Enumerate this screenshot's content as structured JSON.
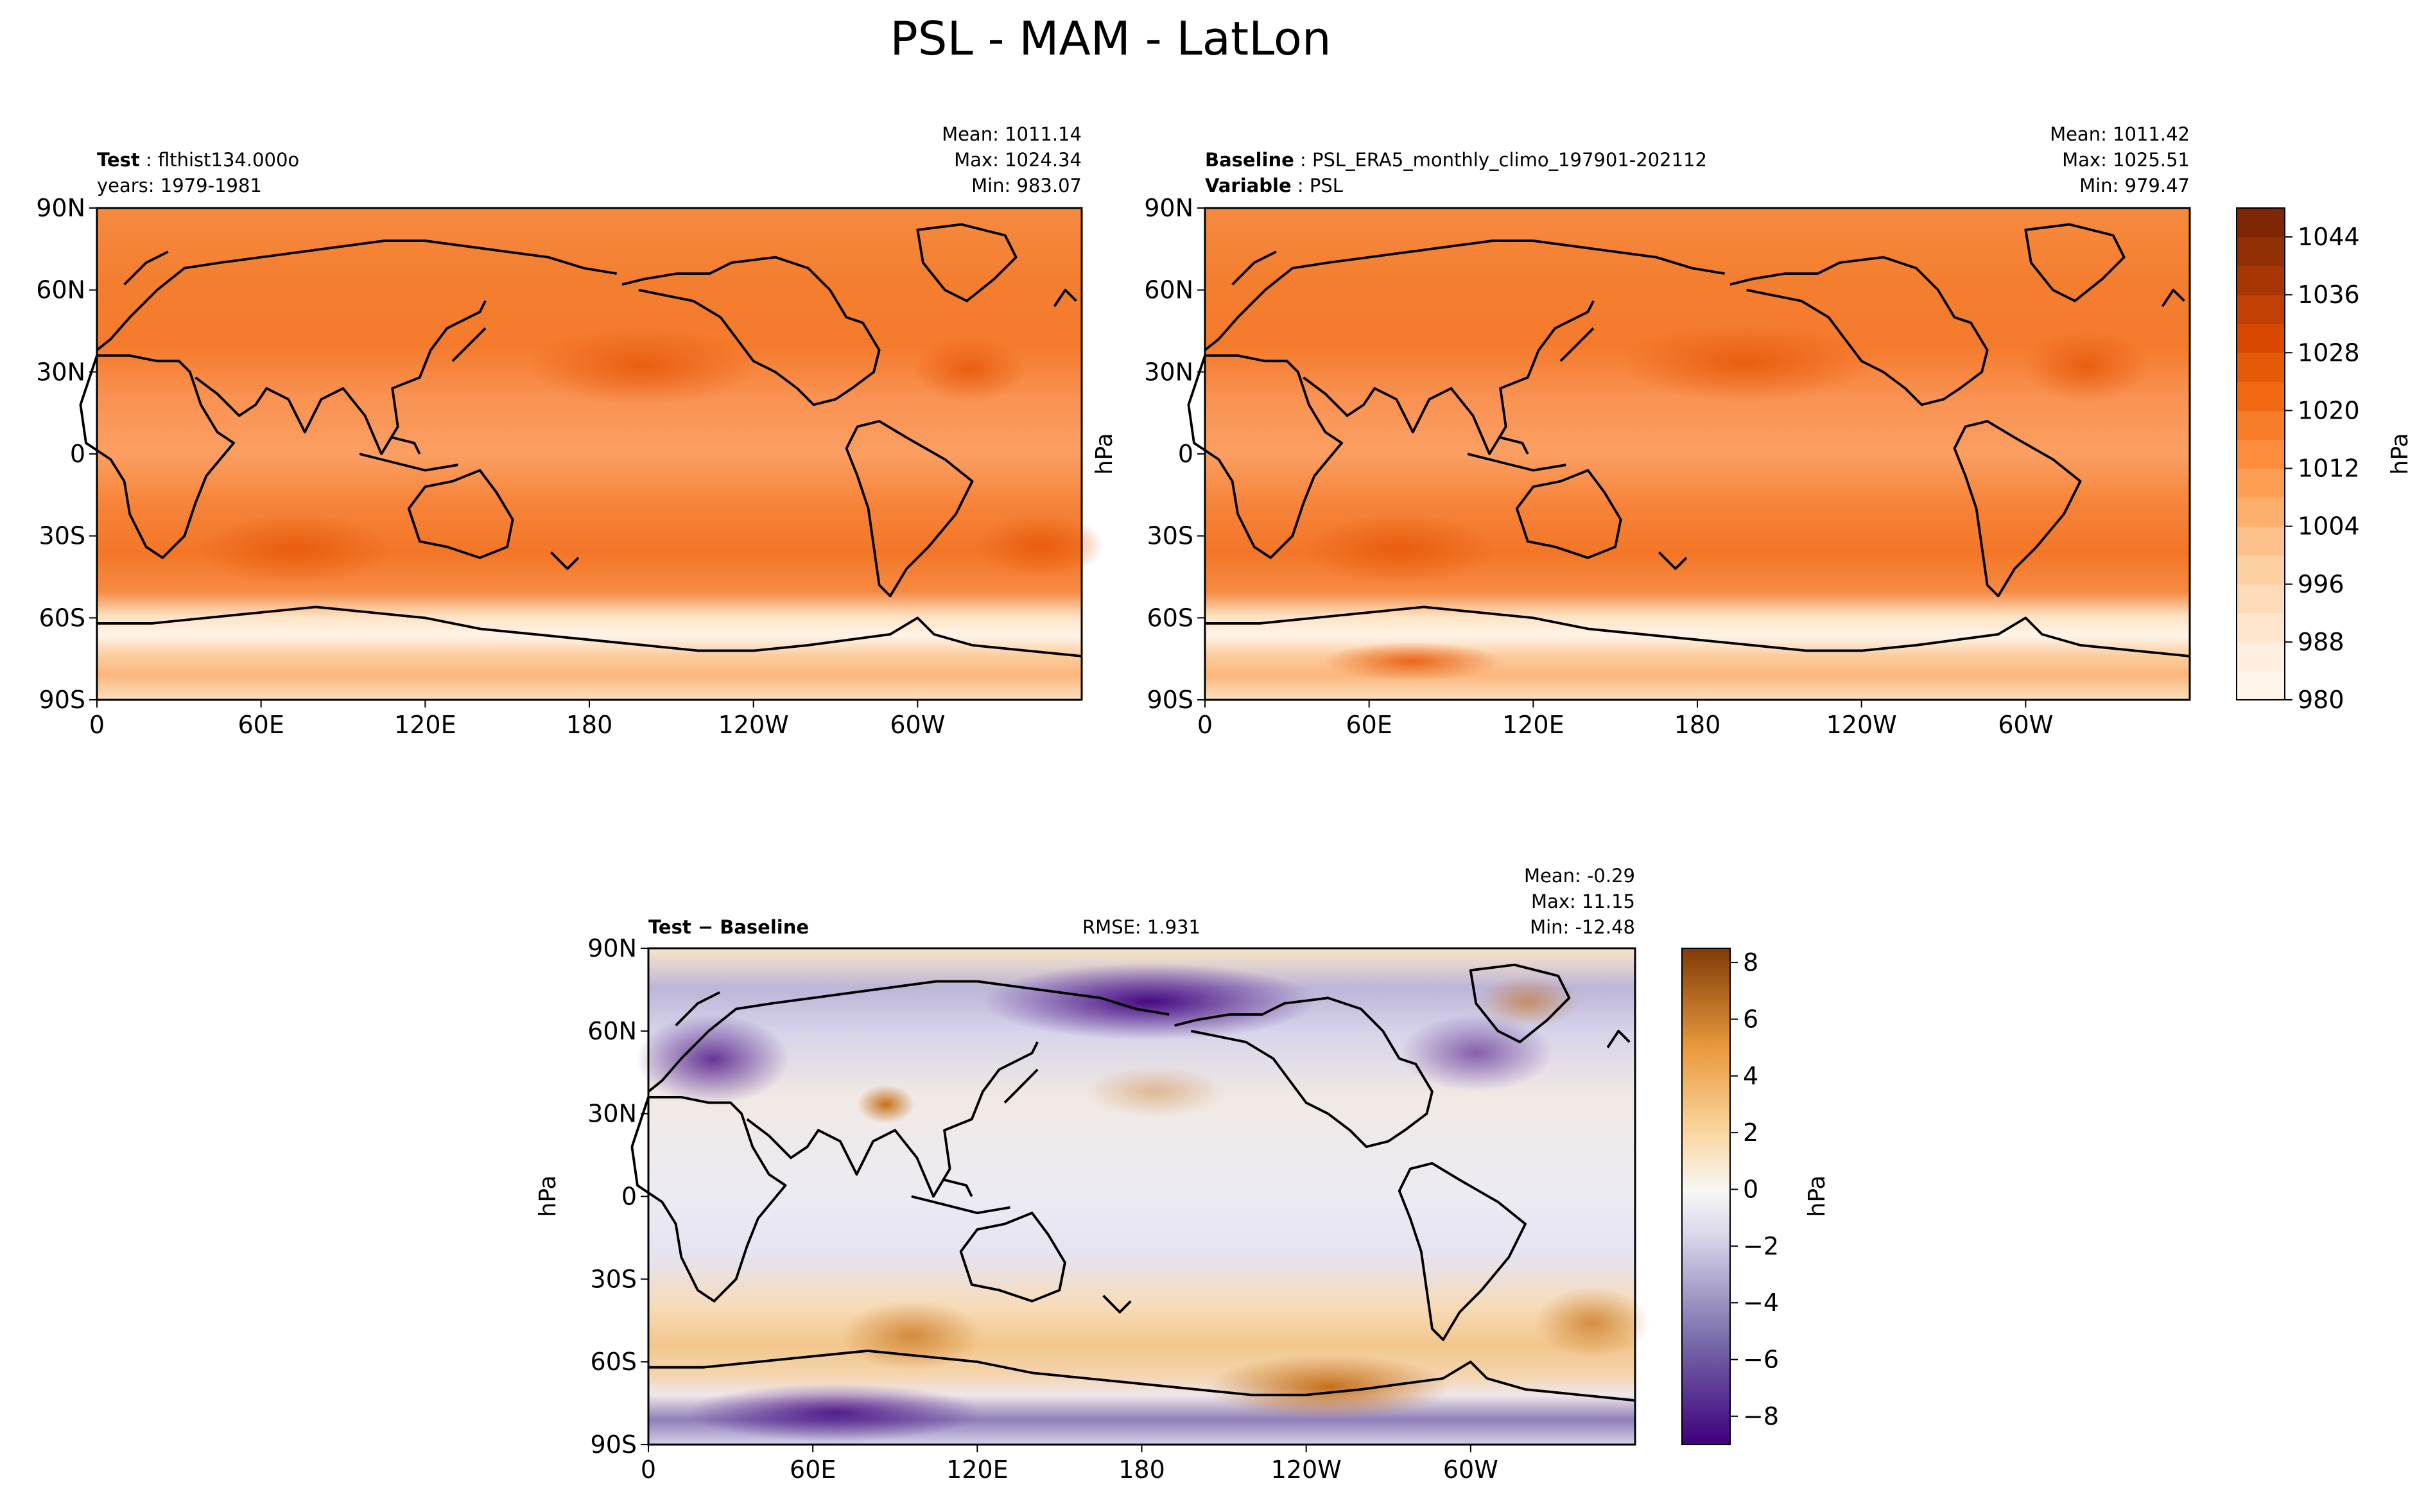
{
  "title": "PSL - MAM - LatLon",
  "lat_ticks": [
    "90N",
    "60N",
    "30N",
    "0",
    "30S",
    "60S",
    "90S"
  ],
  "lon_ticks": [
    "0",
    "60E",
    "120E",
    "180",
    "120W",
    "60W"
  ],
  "units": "hPa",
  "colors": {
    "psl_ramp": [
      "#fff5eb",
      "#fee6ce",
      "#fdd0a2",
      "#fdae6b",
      "#fd8d3c",
      "#f16913",
      "#d94801",
      "#a63603",
      "#7f2704"
    ],
    "diff_neg": "#3f007d",
    "diff_zero": "#f7f7f7",
    "diff_pos": "#7f3b08",
    "coast": "#000000"
  },
  "panels": {
    "test": {
      "label_bold": "Test",
      "label_value": "flthist134.000o",
      "years": "years: 1979-1981",
      "mean": "Mean: 1011.14",
      "max": "Max: 1024.34",
      "min": "Min: 983.07"
    },
    "baseline": {
      "label_bold": "Baseline",
      "label_value": "PSL_ERA5_monthly_climo_197901-202112",
      "variable_bold": "Variable",
      "variable_value": "PSL",
      "mean": "Mean: 1011.42",
      "max": "Max: 1025.51",
      "min": "Min: 979.47"
    },
    "diff": {
      "label": "Test − Baseline",
      "rmse": "RMSE: 1.931",
      "mean": "Mean: -0.29",
      "max": "Max: 11.15",
      "min": "Min: -12.48"
    }
  },
  "colorbars": {
    "psl": {
      "min": 980,
      "max": 1048,
      "ticks": [
        "1044",
        "1036",
        "1028",
        "1020",
        "1012",
        "1004",
        "996",
        "988",
        "980"
      ],
      "tick_values": [
        1044,
        1036,
        1028,
        1020,
        1012,
        1004,
        996,
        988,
        980
      ]
    },
    "diff": {
      "min": -9,
      "max": 8.5,
      "ticks": [
        "8",
        "6",
        "4",
        "2",
        "0",
        "−2",
        "−4",
        "−6",
        "−8"
      ],
      "tick_values": [
        8,
        6,
        4,
        2,
        0,
        -2,
        -4,
        -6,
        -8
      ]
    }
  }
}
